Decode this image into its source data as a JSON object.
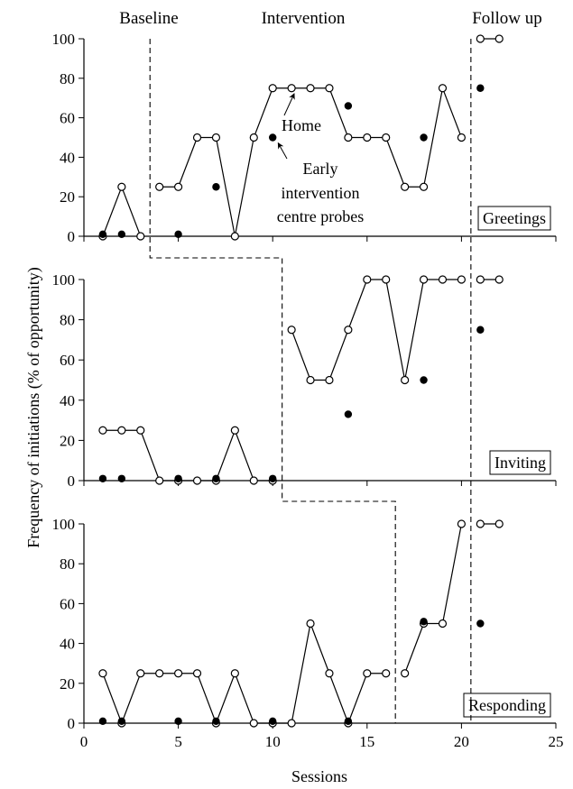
{
  "chart_data": {
    "type": "line",
    "ylabel": "Frequency of initiations (% of opportunity)",
    "xlabel": "Sessions",
    "xlim": [
      0,
      25
    ],
    "ylim": [
      0,
      100
    ],
    "x_ticks": [
      "0",
      "5",
      "10",
      "15",
      "20",
      "25"
    ],
    "y_ticks": [
      "0",
      "20",
      "40",
      "60",
      "80",
      "100"
    ],
    "phase_labels": [
      "Baseline",
      "Intervention",
      "Follow up"
    ],
    "annotations": {
      "home": "Home",
      "probe_line1": "Early",
      "probe_line2": "intervention",
      "probe_line3": "centre probes"
    },
    "panels": [
      {
        "name": "Greetings",
        "phase_change_1": 3.5,
        "phase_change_2": 20.5,
        "home_segments": [
          [
            [
              1,
              0
            ],
            [
              2,
              25
            ],
            [
              3,
              0
            ]
          ],
          [
            [
              4,
              25
            ],
            [
              5,
              25
            ],
            [
              6,
              50
            ],
            [
              7,
              50
            ],
            [
              8,
              0
            ],
            [
              9,
              50
            ],
            [
              10,
              75
            ],
            [
              11,
              75
            ],
            [
              12,
              75
            ],
            [
              13,
              75
            ],
            [
              14,
              50
            ],
            [
              15,
              50
            ],
            [
              16,
              50
            ],
            [
              17,
              25
            ],
            [
              18,
              25
            ],
            [
              19,
              75
            ],
            [
              20,
              50
            ]
          ],
          [
            [
              21,
              100
            ],
            [
              22,
              100
            ]
          ]
        ],
        "probes": [
          [
            1,
            1
          ],
          [
            2,
            1
          ],
          [
            5,
            1
          ],
          [
            7,
            25
          ],
          [
            10,
            50
          ],
          [
            14,
            66
          ],
          [
            18,
            50
          ],
          [
            21,
            75
          ]
        ]
      },
      {
        "name": "Inviting",
        "phase_change_1": 10.5,
        "phase_change_2": 20.5,
        "home_segments": [
          [
            [
              1,
              25
            ],
            [
              2,
              25
            ],
            [
              3,
              25
            ],
            [
              4,
              0
            ],
            [
              5,
              0
            ],
            [
              6,
              0
            ],
            [
              7,
              0
            ],
            [
              8,
              25
            ],
            [
              9,
              0
            ],
            [
              10,
              0
            ]
          ],
          [
            [
              11,
              75
            ],
            [
              12,
              50
            ],
            [
              13,
              50
            ],
            [
              14,
              75
            ],
            [
              15,
              100
            ],
            [
              16,
              100
            ],
            [
              17,
              50
            ],
            [
              18,
              100
            ],
            [
              19,
              100
            ],
            [
              20,
              100
            ]
          ],
          [
            [
              21,
              100
            ],
            [
              22,
              100
            ]
          ]
        ],
        "probes": [
          [
            1,
            1
          ],
          [
            2,
            1
          ],
          [
            5,
            1
          ],
          [
            7,
            1
          ],
          [
            10,
            1
          ],
          [
            14,
            33
          ],
          [
            18,
            50
          ],
          [
            21,
            75
          ]
        ]
      },
      {
        "name": "Responding",
        "phase_change_1": 16.5,
        "phase_change_2": 20.5,
        "home_segments": [
          [
            [
              1,
              25
            ],
            [
              2,
              0
            ],
            [
              3,
              25
            ],
            [
              4,
              25
            ],
            [
              5,
              25
            ],
            [
              6,
              25
            ],
            [
              7,
              0
            ],
            [
              8,
              25
            ],
            [
              9,
              0
            ],
            [
              10,
              0
            ],
            [
              11,
              0
            ],
            [
              12,
              50
            ],
            [
              13,
              25
            ],
            [
              14,
              0
            ],
            [
              15,
              25
            ],
            [
              16,
              25
            ]
          ],
          [
            [
              17,
              25
            ],
            [
              18,
              50
            ],
            [
              19,
              50
            ],
            [
              20,
              100
            ]
          ],
          [
            [
              21,
              100
            ],
            [
              22,
              100
            ]
          ]
        ],
        "probes": [
          [
            1,
            1
          ],
          [
            2,
            1
          ],
          [
            5,
            1
          ],
          [
            7,
            1
          ],
          [
            10,
            1
          ],
          [
            14,
            1
          ],
          [
            18,
            51
          ],
          [
            21,
            50
          ]
        ]
      }
    ]
  }
}
